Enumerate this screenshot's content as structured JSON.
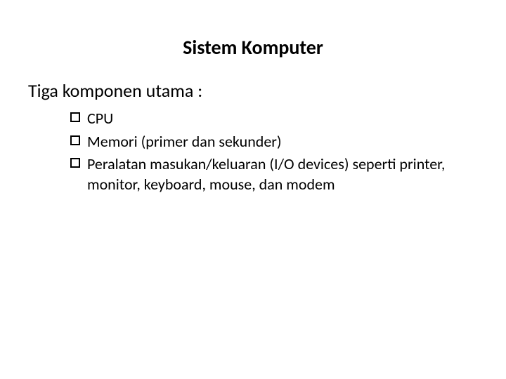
{
  "slide": {
    "title": "Sistem Komputer",
    "subtitle": "Tiga komponen utama :",
    "bullets": [
      "CPU",
      "Memori (primer dan sekunder)",
      "Peralatan masukan/keluaran (I/O devices) seperti printer, monitor, keyboard, mouse, dan modem"
    ]
  },
  "style": {
    "background_color": "#ffffff",
    "text_color": "#000000",
    "title_fontsize": 28,
    "subtitle_fontsize": 26,
    "bullet_fontsize": 22,
    "title_weight": "bold",
    "font_family": "Calibri, Arial, sans-serif",
    "bullet_marker": {
      "type": "square-outline",
      "size": 14,
      "border_width": 2,
      "border_color": "#000000"
    }
  }
}
